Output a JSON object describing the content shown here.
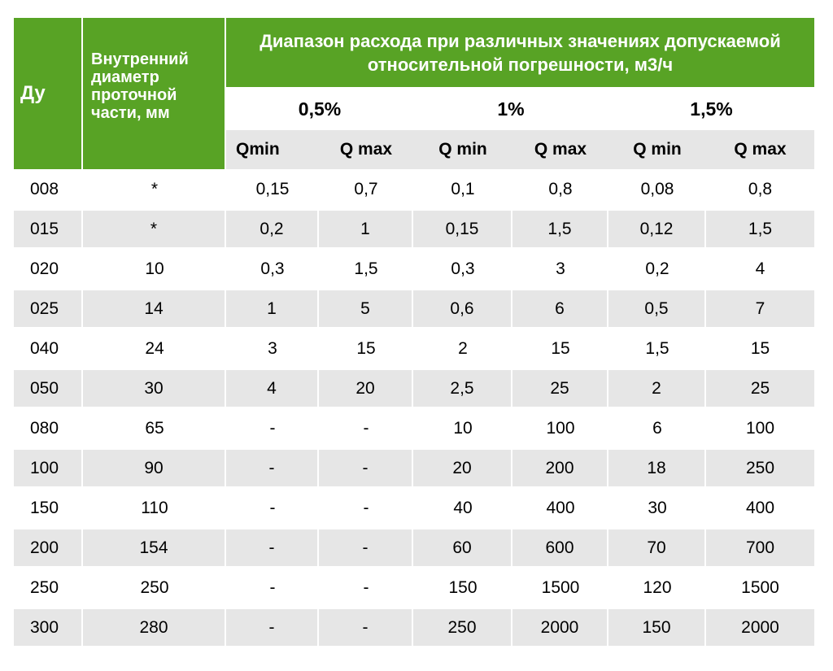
{
  "colors": {
    "header_green": "#58a325",
    "alt_row": "#e6e6e6",
    "text": "#000000",
    "header_text": "#ffffff"
  },
  "header": {
    "du": "Ду",
    "diameter": "Внутренний диаметр проточной части, мм",
    "range": "Диапазон расхода при различных значениях допускаемой относительной погрешности, м3/ч",
    "percents": [
      "0,5%",
      "1%",
      "1,5%"
    ],
    "q_labels": [
      "Qmin",
      "Q max",
      "Q min",
      "Q max",
      "Q min",
      "Q max"
    ]
  },
  "rows": [
    [
      "008",
      "*",
      "0,15",
      "0,7",
      "0,1",
      "0,8",
      "0,08",
      "0,8"
    ],
    [
      "015",
      "*",
      "0,2",
      "1",
      "0,15",
      "1,5",
      "0,12",
      "1,5"
    ],
    [
      "020",
      "10",
      "0,3",
      "1,5",
      "0,3",
      "3",
      "0,2",
      "4"
    ],
    [
      "025",
      "14",
      "1",
      "5",
      "0,6",
      "6",
      "0,5",
      "7"
    ],
    [
      "040",
      "24",
      "3",
      "15",
      "2",
      "15",
      "1,5",
      "15"
    ],
    [
      "050",
      "30",
      "4",
      "20",
      "2,5",
      "25",
      "2",
      "25"
    ],
    [
      "080",
      "65",
      "-",
      "-",
      "10",
      "100",
      "6",
      "100"
    ],
    [
      "100",
      "90",
      "-",
      "-",
      "20",
      "200",
      "18",
      "250"
    ],
    [
      "150",
      "110",
      "-",
      "-",
      "40",
      "400",
      "30",
      "400"
    ],
    [
      "200",
      "154",
      "-",
      "-",
      "60",
      "600",
      "70",
      "700"
    ],
    [
      "250",
      "250",
      "-",
      "-",
      "150",
      "1500",
      "120",
      "1500"
    ],
    [
      "300",
      "280",
      "-",
      "-",
      "250",
      "2000",
      "150",
      "2000"
    ]
  ]
}
